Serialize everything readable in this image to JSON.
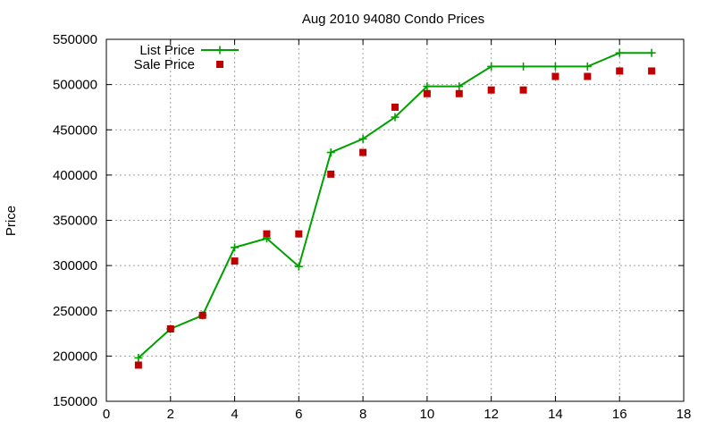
{
  "chart_data": {
    "type": "line",
    "title": "Aug 2010 94080 Condo Prices",
    "xlabel": "",
    "ylabel": "Price",
    "xlim": [
      0,
      18
    ],
    "ylim": [
      150000,
      550000
    ],
    "x_ticks": [
      0,
      2,
      4,
      6,
      8,
      10,
      12,
      14,
      16,
      18
    ],
    "y_ticks": [
      150000,
      200000,
      250000,
      300000,
      350000,
      400000,
      450000,
      500000,
      550000
    ],
    "grid": true,
    "legend_position": "top-left",
    "series": [
      {
        "name": "List Price",
        "style": "line+cross",
        "color": "#00a000",
        "x": [
          1,
          2,
          3,
          4,
          5,
          6,
          7,
          8,
          9,
          10,
          11,
          12,
          13,
          14,
          15,
          16,
          17
        ],
        "y": [
          198000,
          230000,
          245000,
          320000,
          330000,
          299000,
          425000,
          440000,
          464000,
          498000,
          498000,
          520000,
          520000,
          520000,
          520000,
          535000,
          535000
        ]
      },
      {
        "name": "Sale Price",
        "style": "square-points",
        "color": "#c00000",
        "x": [
          1,
          2,
          3,
          4,
          5,
          6,
          7,
          8,
          9,
          10,
          11,
          12,
          13,
          14,
          15,
          16,
          17
        ],
        "y": [
          190000,
          230000,
          245000,
          305000,
          335000,
          335000,
          401000,
          425000,
          475000,
          490000,
          490000,
          494000,
          494000,
          509000,
          509000,
          515000,
          515000
        ]
      }
    ]
  }
}
